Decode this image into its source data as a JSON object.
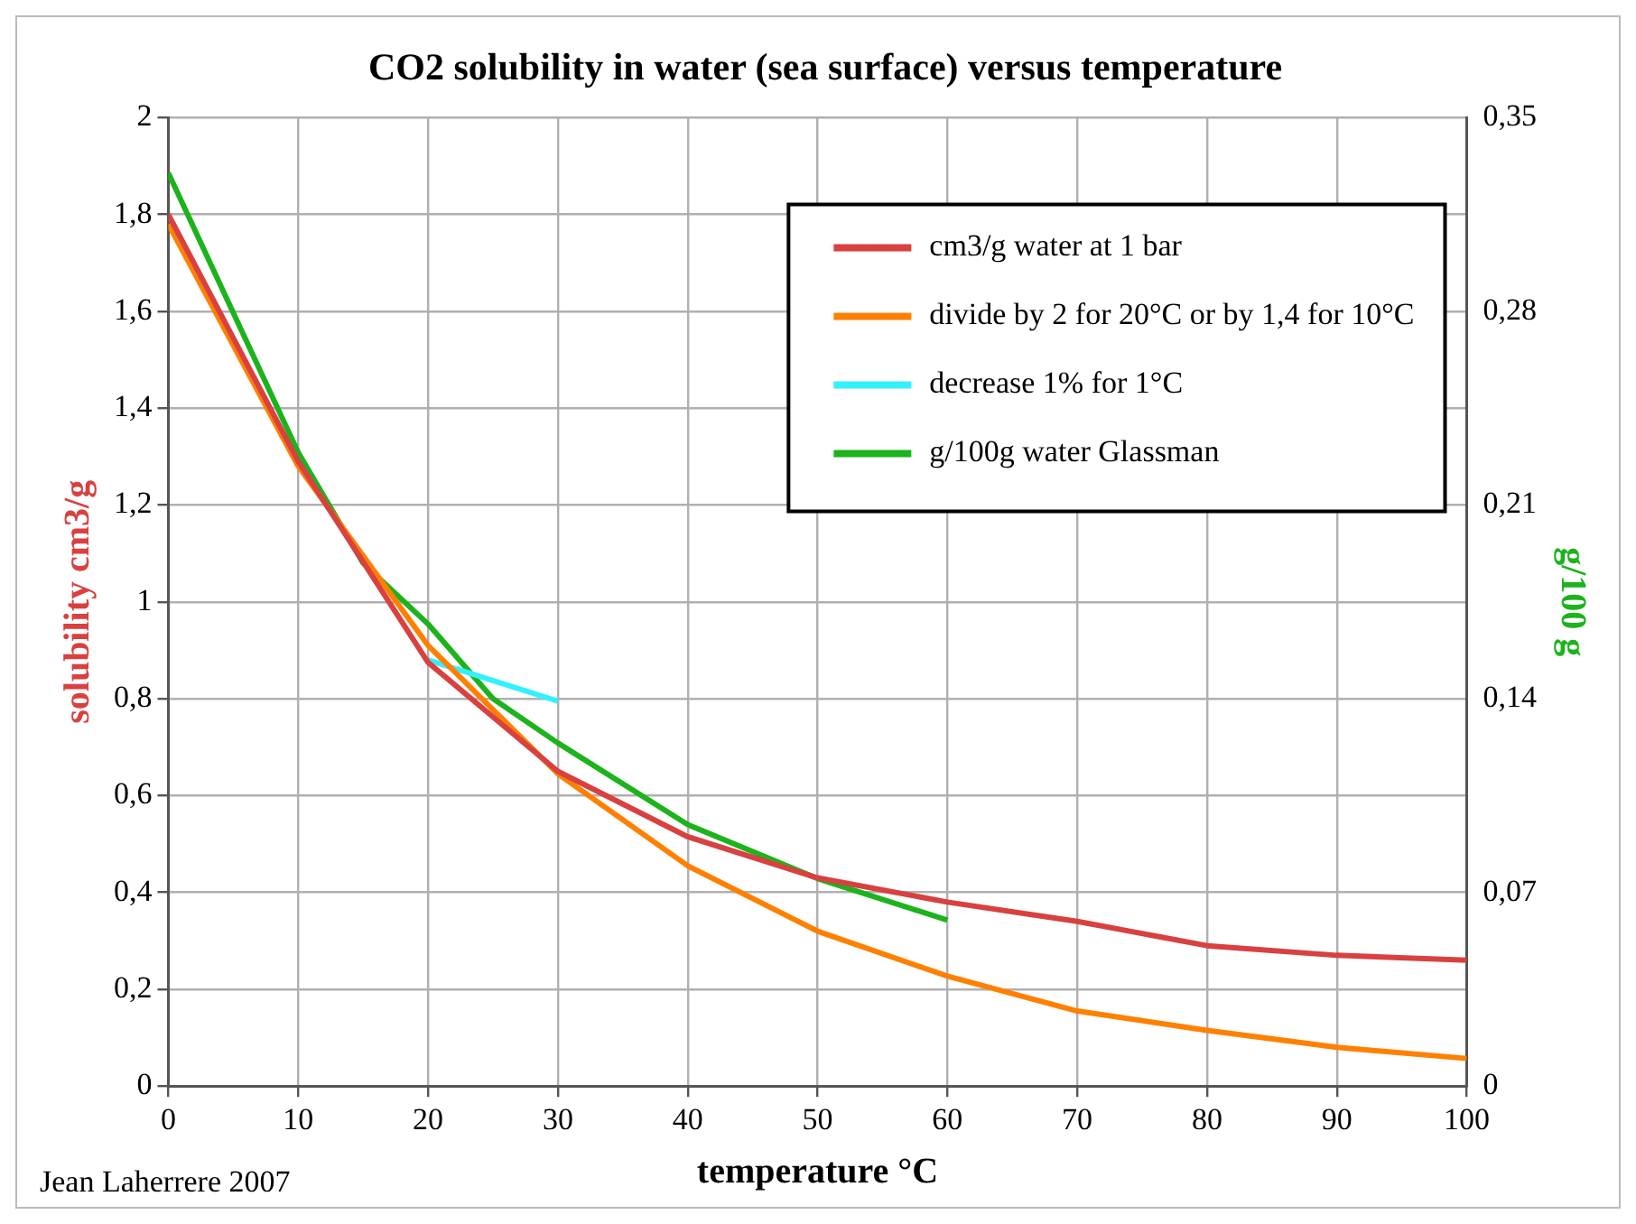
{
  "chart_data": {
    "type": "line",
    "title": "CO2 solubility in water (sea surface) versus temperature",
    "xlabel": "temperature °C",
    "ylabel": "solubility cm3/g",
    "y2label": "g/100 g",
    "annotations": [
      "Jean Laherrere 2007"
    ],
    "xlim": [
      0,
      100
    ],
    "xticks": [
      0,
      10,
      20,
      30,
      40,
      50,
      60,
      70,
      80,
      90,
      100
    ],
    "ylim": [
      0,
      2
    ],
    "yticks": [
      0,
      {
        "value": 0.2,
        "label": "0,2"
      },
      {
        "value": 0.4,
        "label": "0,4"
      },
      {
        "value": 0.6,
        "label": "0,6"
      },
      {
        "value": 0.8,
        "label": "0,8"
      },
      1,
      {
        "value": 1.2,
        "label": "1,2"
      },
      {
        "value": 1.4,
        "label": "1,4"
      },
      {
        "value": 1.6,
        "label": "1,6"
      },
      {
        "value": 1.8,
        "label": "1,8"
      },
      2
    ],
    "y2lim": [
      0,
      0.35
    ],
    "y2ticks": [
      0,
      {
        "value": 0.07,
        "label": "0,07"
      },
      {
        "value": 0.14,
        "label": "0,14"
      },
      {
        "value": 0.21,
        "label": "0,21"
      },
      {
        "value": 0.28,
        "label": "0,28"
      },
      {
        "value": 0.35,
        "label": "0,35"
      }
    ],
    "grid": true,
    "legend": "top right",
    "marker": "none",
    "line_style": "solid",
    "series": [
      {
        "name": "cm3/g water at 1 bar",
        "color": "#d94040",
        "x": [
          0,
          10,
          20,
          30,
          40,
          50,
          60,
          70,
          80,
          90,
          100
        ],
        "values": [
          1.8,
          1.29,
          0.875,
          0.65,
          0.515,
          0.43,
          0.38,
          0.34,
          0.29,
          0.27,
          0.26
        ]
      },
      {
        "name": "divide by 2 for 20°C or by 1,4 for 10°C",
        "color": "#ff8000",
        "x": [
          0,
          10,
          20,
          30,
          40,
          50,
          60,
          70,
          80,
          90,
          100
        ],
        "values": [
          1.78,
          1.28,
          0.91,
          0.645,
          0.455,
          0.32,
          0.227,
          0.155,
          0.115,
          0.08,
          0.057
        ]
      },
      {
        "name": "decrease 1% for 1°C",
        "color": "#33f0ff",
        "x": [
          20,
          30
        ],
        "values": [
          0.88,
          0.795
        ]
      },
      {
        "name": "g/100g water Glassman",
        "color": "#1cb31c",
        "axis": "y2",
        "x": [
          0,
          10,
          15,
          20,
          25,
          30,
          40,
          50,
          60
        ],
        "values": [
          0.33,
          0.229,
          0.189,
          0.167,
          0.14,
          0.124,
          0.0945,
          0.075,
          0.06
        ]
      }
    ]
  }
}
